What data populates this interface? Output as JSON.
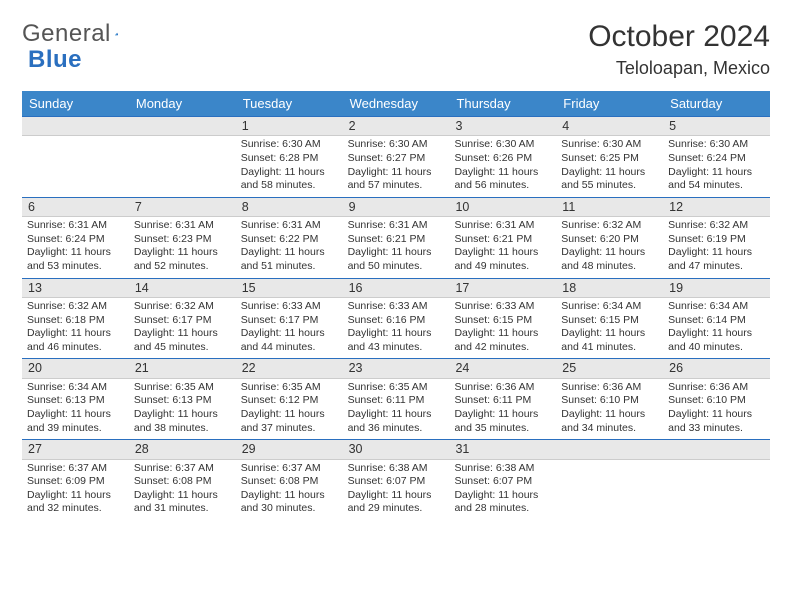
{
  "logo": {
    "word1": "General",
    "word2": "Blue"
  },
  "title": "October 2024",
  "location": "Teloloapan, Mexico",
  "colors": {
    "header_bg": "#3b86c9",
    "accent": "#2a6fbf",
    "daynum_bg": "#e8e8e8",
    "text": "#333333"
  },
  "day_names": [
    "Sunday",
    "Monday",
    "Tuesday",
    "Wednesday",
    "Thursday",
    "Friday",
    "Saturday"
  ],
  "weeks": [
    [
      {
        "empty": true
      },
      {
        "empty": true
      },
      {
        "n": "1",
        "sr": "Sunrise: 6:30 AM",
        "ss": "Sunset: 6:28 PM",
        "dl1": "Daylight: 11 hours",
        "dl2": "and 58 minutes."
      },
      {
        "n": "2",
        "sr": "Sunrise: 6:30 AM",
        "ss": "Sunset: 6:27 PM",
        "dl1": "Daylight: 11 hours",
        "dl2": "and 57 minutes."
      },
      {
        "n": "3",
        "sr": "Sunrise: 6:30 AM",
        "ss": "Sunset: 6:26 PM",
        "dl1": "Daylight: 11 hours",
        "dl2": "and 56 minutes."
      },
      {
        "n": "4",
        "sr": "Sunrise: 6:30 AM",
        "ss": "Sunset: 6:25 PM",
        "dl1": "Daylight: 11 hours",
        "dl2": "and 55 minutes."
      },
      {
        "n": "5",
        "sr": "Sunrise: 6:30 AM",
        "ss": "Sunset: 6:24 PM",
        "dl1": "Daylight: 11 hours",
        "dl2": "and 54 minutes."
      }
    ],
    [
      {
        "n": "6",
        "sr": "Sunrise: 6:31 AM",
        "ss": "Sunset: 6:24 PM",
        "dl1": "Daylight: 11 hours",
        "dl2": "and 53 minutes."
      },
      {
        "n": "7",
        "sr": "Sunrise: 6:31 AM",
        "ss": "Sunset: 6:23 PM",
        "dl1": "Daylight: 11 hours",
        "dl2": "and 52 minutes."
      },
      {
        "n": "8",
        "sr": "Sunrise: 6:31 AM",
        "ss": "Sunset: 6:22 PM",
        "dl1": "Daylight: 11 hours",
        "dl2": "and 51 minutes."
      },
      {
        "n": "9",
        "sr": "Sunrise: 6:31 AM",
        "ss": "Sunset: 6:21 PM",
        "dl1": "Daylight: 11 hours",
        "dl2": "and 50 minutes."
      },
      {
        "n": "10",
        "sr": "Sunrise: 6:31 AM",
        "ss": "Sunset: 6:21 PM",
        "dl1": "Daylight: 11 hours",
        "dl2": "and 49 minutes."
      },
      {
        "n": "11",
        "sr": "Sunrise: 6:32 AM",
        "ss": "Sunset: 6:20 PM",
        "dl1": "Daylight: 11 hours",
        "dl2": "and 48 minutes."
      },
      {
        "n": "12",
        "sr": "Sunrise: 6:32 AM",
        "ss": "Sunset: 6:19 PM",
        "dl1": "Daylight: 11 hours",
        "dl2": "and 47 minutes."
      }
    ],
    [
      {
        "n": "13",
        "sr": "Sunrise: 6:32 AM",
        "ss": "Sunset: 6:18 PM",
        "dl1": "Daylight: 11 hours",
        "dl2": "and 46 minutes."
      },
      {
        "n": "14",
        "sr": "Sunrise: 6:32 AM",
        "ss": "Sunset: 6:17 PM",
        "dl1": "Daylight: 11 hours",
        "dl2": "and 45 minutes."
      },
      {
        "n": "15",
        "sr": "Sunrise: 6:33 AM",
        "ss": "Sunset: 6:17 PM",
        "dl1": "Daylight: 11 hours",
        "dl2": "and 44 minutes."
      },
      {
        "n": "16",
        "sr": "Sunrise: 6:33 AM",
        "ss": "Sunset: 6:16 PM",
        "dl1": "Daylight: 11 hours",
        "dl2": "and 43 minutes."
      },
      {
        "n": "17",
        "sr": "Sunrise: 6:33 AM",
        "ss": "Sunset: 6:15 PM",
        "dl1": "Daylight: 11 hours",
        "dl2": "and 42 minutes."
      },
      {
        "n": "18",
        "sr": "Sunrise: 6:34 AM",
        "ss": "Sunset: 6:15 PM",
        "dl1": "Daylight: 11 hours",
        "dl2": "and 41 minutes."
      },
      {
        "n": "19",
        "sr": "Sunrise: 6:34 AM",
        "ss": "Sunset: 6:14 PM",
        "dl1": "Daylight: 11 hours",
        "dl2": "and 40 minutes."
      }
    ],
    [
      {
        "n": "20",
        "sr": "Sunrise: 6:34 AM",
        "ss": "Sunset: 6:13 PM",
        "dl1": "Daylight: 11 hours",
        "dl2": "and 39 minutes."
      },
      {
        "n": "21",
        "sr": "Sunrise: 6:35 AM",
        "ss": "Sunset: 6:13 PM",
        "dl1": "Daylight: 11 hours",
        "dl2": "and 38 minutes."
      },
      {
        "n": "22",
        "sr": "Sunrise: 6:35 AM",
        "ss": "Sunset: 6:12 PM",
        "dl1": "Daylight: 11 hours",
        "dl2": "and 37 minutes."
      },
      {
        "n": "23",
        "sr": "Sunrise: 6:35 AM",
        "ss": "Sunset: 6:11 PM",
        "dl1": "Daylight: 11 hours",
        "dl2": "and 36 minutes."
      },
      {
        "n": "24",
        "sr": "Sunrise: 6:36 AM",
        "ss": "Sunset: 6:11 PM",
        "dl1": "Daylight: 11 hours",
        "dl2": "and 35 minutes."
      },
      {
        "n": "25",
        "sr": "Sunrise: 6:36 AM",
        "ss": "Sunset: 6:10 PM",
        "dl1": "Daylight: 11 hours",
        "dl2": "and 34 minutes."
      },
      {
        "n": "26",
        "sr": "Sunrise: 6:36 AM",
        "ss": "Sunset: 6:10 PM",
        "dl1": "Daylight: 11 hours",
        "dl2": "and 33 minutes."
      }
    ],
    [
      {
        "n": "27",
        "sr": "Sunrise: 6:37 AM",
        "ss": "Sunset: 6:09 PM",
        "dl1": "Daylight: 11 hours",
        "dl2": "and 32 minutes."
      },
      {
        "n": "28",
        "sr": "Sunrise: 6:37 AM",
        "ss": "Sunset: 6:08 PM",
        "dl1": "Daylight: 11 hours",
        "dl2": "and 31 minutes."
      },
      {
        "n": "29",
        "sr": "Sunrise: 6:37 AM",
        "ss": "Sunset: 6:08 PM",
        "dl1": "Daylight: 11 hours",
        "dl2": "and 30 minutes."
      },
      {
        "n": "30",
        "sr": "Sunrise: 6:38 AM",
        "ss": "Sunset: 6:07 PM",
        "dl1": "Daylight: 11 hours",
        "dl2": "and 29 minutes."
      },
      {
        "n": "31",
        "sr": "Sunrise: 6:38 AM",
        "ss": "Sunset: 6:07 PM",
        "dl1": "Daylight: 11 hours",
        "dl2": "and 28 minutes."
      },
      {
        "empty": true
      },
      {
        "empty": true
      }
    ]
  ]
}
